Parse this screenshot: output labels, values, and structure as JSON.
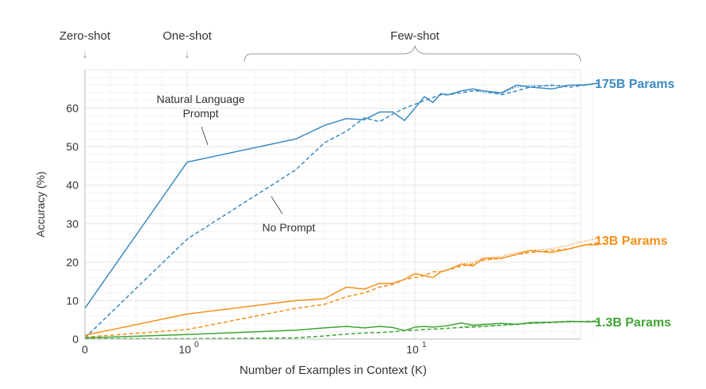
{
  "chart_data": {
    "type": "line",
    "xlabel": "Number of Examples in Context  (K)",
    "ylabel": "Accuracy (%)",
    "x_scale": "symlog",
    "xlim": [
      0,
      64
    ],
    "ylim": [
      0,
      70
    ],
    "x_ticks": [
      {
        "value": 0,
        "base": "0",
        "exp": ""
      },
      {
        "value": 1,
        "base": "10",
        "exp": "0"
      },
      {
        "value": 10,
        "base": "10",
        "exp": "1"
      }
    ],
    "y_ticks": [
      0,
      10,
      20,
      30,
      40,
      50,
      60
    ],
    "grid": true,
    "top_labels": {
      "zero_shot": "Zero-shot",
      "one_shot": "One-shot",
      "few_shot": "Few-shot",
      "arrow_glyph": "↓"
    },
    "annotations": {
      "nl_prompt_line1": "Natural Language",
      "nl_prompt_line2": "Prompt",
      "no_prompt": "No Prompt"
    },
    "models": [
      {
        "label": "175B Params",
        "color": "#3b8bc2",
        "series": [
          {
            "style": "solid",
            "x": [
              0,
              1,
              3,
              4,
              5,
              6,
              7,
              8,
              9,
              10,
              11,
              12,
              13,
              14,
              16,
              18,
              20,
              24,
              28,
              32,
              40,
              48,
              56,
              64
            ],
            "y": [
              8,
              46,
              52,
              55.5,
              57.3,
              57,
              59,
              59,
              56.8,
              60,
              63,
              61.5,
              63.8,
              63.5,
              64.5,
              65,
              64.5,
              64,
              66,
              65.5,
              65,
              66,
              66,
              66.5
            ]
          },
          {
            "style": "dashed",
            "x": [
              0,
              1,
              3,
              4,
              5,
              6,
              7,
              8,
              9,
              10,
              11,
              12,
              13,
              14,
              16,
              18,
              20,
              24,
              28,
              32,
              40,
              48,
              56,
              64
            ],
            "y": [
              0.3,
              26,
              44,
              51,
              54,
              57.5,
              56.5,
              58.5,
              60,
              61,
              62,
              62.8,
              63.5,
              63.5,
              64,
              64.5,
              64.5,
              63.5,
              64.5,
              65.5,
              66,
              65.5,
              66,
              66.5
            ]
          },
          {
            "style": "dotted",
            "x": [
              16,
              18,
              20,
              24,
              28,
              32,
              40,
              48,
              56,
              64
            ],
            "y": [
              64.5,
              65,
              64,
              63.8,
              65.5,
              66,
              65.8,
              66,
              66.2,
              66.5
            ]
          }
        ]
      },
      {
        "label": "13B Params",
        "color": "#f5901a",
        "series": [
          {
            "style": "solid",
            "x": [
              0,
              1,
              3,
              4,
              5,
              6,
              7,
              8,
              9,
              10,
              11,
              12,
              13,
              14,
              16,
              18,
              20,
              24,
              28,
              32,
              40,
              48,
              56,
              64
            ],
            "y": [
              1,
              6.5,
              10,
              10.5,
              13.5,
              13,
              14.5,
              14.5,
              15.5,
              17,
              16.5,
              16,
              17.5,
              18,
              19.5,
              19,
              21,
              21,
              22,
              23,
              22.5,
              23.5,
              24.5,
              24.5
            ]
          },
          {
            "style": "dashed",
            "x": [
              0,
              1,
              3,
              4,
              5,
              6,
              7,
              8,
              9,
              10,
              11,
              12,
              13,
              14,
              16,
              18,
              20,
              24,
              28,
              32,
              40,
              48,
              56,
              64
            ],
            "y": [
              0.5,
              2.5,
              8,
              9,
              11,
              12,
              13.5,
              14.2,
              15.5,
              16,
              16.5,
              17.5,
              17.5,
              18,
              19,
              19.5,
              20.5,
              21,
              22,
              22.5,
              23,
              23.5,
              24.5,
              25
            ]
          },
          {
            "style": "dotted",
            "x": [
              16,
              18,
              20,
              24,
              28,
              32,
              40,
              48,
              56,
              64
            ],
            "y": [
              19.5,
              20,
              21,
              21.5,
              22.5,
              23,
              23.5,
              24.5,
              25.5,
              26.2
            ]
          }
        ]
      },
      {
        "label": "1.3B Params",
        "color": "#3fa535",
        "series": [
          {
            "style": "solid",
            "x": [
              0,
              1,
              3,
              4,
              5,
              6,
              7,
              8,
              9,
              10,
              11,
              12,
              13,
              14,
              16,
              18,
              20,
              24,
              28,
              32,
              40,
              48,
              56,
              64
            ],
            "y": [
              0.3,
              1.2,
              2.3,
              2.9,
              3.3,
              2.9,
              3.3,
              3,
              2.2,
              3.1,
              3.3,
              3.1,
              3.3,
              3.5,
              4.2,
              3.6,
              3.8,
              4.1,
              3.8,
              4.3,
              4.4,
              4.6,
              4.5,
              4.5
            ]
          },
          {
            "style": "dashed",
            "x": [
              0,
              1,
              3,
              4,
              5,
              6,
              7,
              8,
              9,
              10,
              11,
              12,
              13,
              14,
              16,
              18,
              20,
              24,
              28,
              32,
              40,
              48,
              56,
              64
            ],
            "y": [
              0.1,
              0.1,
              0.3,
              0.8,
              1.3,
              1.6,
              1.7,
              1.9,
              2.2,
              2.3,
              2.5,
              2.6,
              2.7,
              2.8,
              3,
              3.1,
              3.3,
              3.6,
              3.8,
              4.1,
              4.3,
              4.5,
              4.6,
              4.7
            ]
          },
          {
            "style": "dotted",
            "x": [
              16,
              18,
              20,
              24,
              28,
              32,
              40,
              48,
              56,
              64
            ],
            "y": [
              3.2,
              3.4,
              3.4,
              3.6,
              4,
              4.2,
              4.4,
              4.7,
              4.5,
              4.6
            ]
          }
        ]
      }
    ]
  }
}
